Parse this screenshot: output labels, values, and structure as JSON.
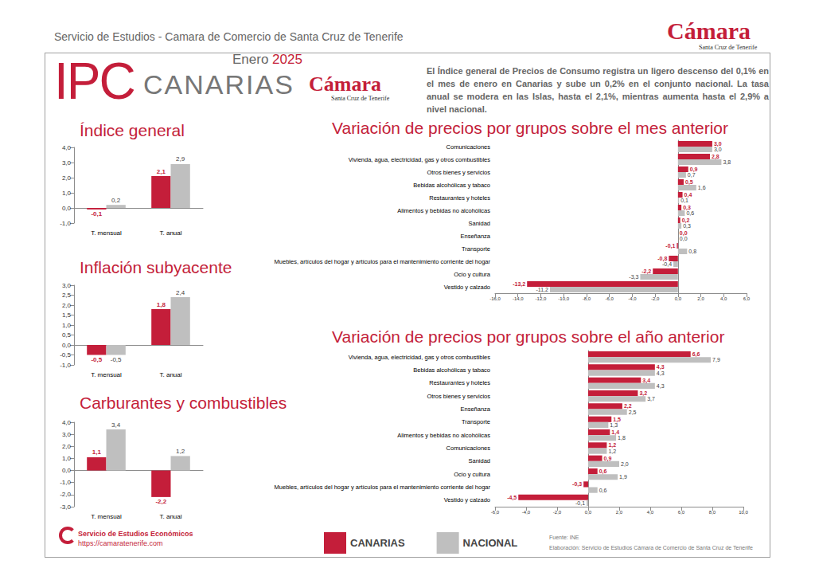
{
  "header": {
    "top_text": "Servicio de Estudios - Camara de Comercio de Santa Cruz de Tenerife",
    "logo_name": "Cámara",
    "logo_sub": "Santa Cruz de Tenerife",
    "title_main": "IPC",
    "title_region": "CANARIAS",
    "period_month": "Enero",
    "period_year": "2025",
    "summary": "El Índice general de Precios de Consumo registra un ligero descenso del 0,1% en el mes de enero en Canarias y sube un 0,2% en el conjunto nacional. La tasa anual se modera en las Islas, hasta el 2,1%, mientras aumenta hasta el 2,9% a nivel nacional."
  },
  "chart_data": [
    {
      "type": "bar",
      "title": "Índice general",
      "categories": [
        "T. mensual",
        "T. anual"
      ],
      "series": [
        {
          "name": "CANARIAS",
          "color": "#c41e3a",
          "values": [
            -0.1,
            2.1
          ],
          "value_labels": [
            "-0,1",
            "2,1"
          ]
        },
        {
          "name": "NACIONAL",
          "color": "#bfbfbf",
          "values": [
            0.2,
            2.9
          ],
          "value_labels": [
            "0,2",
            "2,9"
          ]
        }
      ],
      "ylim": [
        -1,
        4
      ],
      "yticks": [
        {
          "value": -1,
          "label": "-1,0"
        },
        {
          "value": 0,
          "label": "0,0"
        },
        {
          "value": 1,
          "label": "1,0"
        },
        {
          "value": 2,
          "label": "2,0"
        },
        {
          "value": 3,
          "label": "3,0"
        },
        {
          "value": 4,
          "label": "4,0"
        }
      ],
      "grid": false,
      "data_labels": true,
      "legend": "bottom"
    },
    {
      "type": "bar",
      "title": "Inflación subyacente",
      "categories": [
        "T. mensual",
        "T. anual"
      ],
      "series": [
        {
          "name": "CANARIAS",
          "color": "#c41e3a",
          "values": [
            -0.5,
            1.8
          ],
          "value_labels": [
            "-0,5",
            "1,8"
          ]
        },
        {
          "name": "NACIONAL",
          "color": "#bfbfbf",
          "values": [
            -0.5,
            2.4
          ],
          "value_labels": [
            "-0,5",
            "2,4"
          ]
        }
      ],
      "ylim": [
        -1,
        3
      ],
      "yticks": [
        {
          "value": -1,
          "label": "-1,0"
        },
        {
          "value": -0.5,
          "label": "-0,5"
        },
        {
          "value": 0,
          "label": "0,0"
        },
        {
          "value": 0.5,
          "label": "0,5"
        },
        {
          "value": 1,
          "label": "1,0"
        },
        {
          "value": 1.5,
          "label": "1,5"
        },
        {
          "value": 2,
          "label": "2,0"
        },
        {
          "value": 2.5,
          "label": "2,5"
        },
        {
          "value": 3,
          "label": "3,0"
        }
      ],
      "grid": false,
      "data_labels": true,
      "legend": "bottom"
    },
    {
      "type": "bar",
      "title": "Carburantes y combustibles",
      "categories": [
        "T. mensual",
        "T. anual"
      ],
      "series": [
        {
          "name": "CANARIAS",
          "color": "#c41e3a",
          "values": [
            1.1,
            -2.2
          ],
          "value_labels": [
            "1,1",
            "-2,2"
          ]
        },
        {
          "name": "NACIONAL",
          "color": "#bfbfbf",
          "values": [
            3.4,
            1.2
          ],
          "value_labels": [
            "3,4",
            "1,2"
          ]
        }
      ],
      "ylim": [
        -3,
        4
      ],
      "yticks": [
        {
          "value": -3,
          "label": "-3,0"
        },
        {
          "value": -2,
          "label": "-2,0"
        },
        {
          "value": -1,
          "label": "-1,0"
        },
        {
          "value": 0,
          "label": "0,0"
        },
        {
          "value": 1,
          "label": "1,0"
        },
        {
          "value": 2,
          "label": "2,0"
        },
        {
          "value": 3,
          "label": "3,0"
        },
        {
          "value": 4,
          "label": "4,0"
        }
      ],
      "grid": false,
      "data_labels": true,
      "legend": "bottom"
    },
    {
      "type": "bar",
      "title": "Variación de precios por grupos sobre el mes anterior",
      "orientation": "horizontal",
      "categories": [
        "Comunicaciones",
        "Vivienda, agua, electricidad, gas y otros combustibles",
        "Otros bienes y servicios",
        "Bebidas alcohólicas y tabaco",
        "Restaurantes y hoteles",
        "Alimentos y bebidas no alcohólicas",
        "Sanidad",
        "Enseñanza",
        "Transporte",
        "Muebles, artículos del hogar y artículos para el mantenimiento corriente del hogar",
        "Ocio y cultura",
        "Vestido y calzado"
      ],
      "series": [
        {
          "name": "CANARIAS",
          "color": "#c41e3a",
          "values": [
            3.0,
            2.8,
            0.9,
            0.5,
            0.4,
            0.3,
            0.2,
            0.0,
            -0.1,
            -0.8,
            -2.2,
            -13.2
          ],
          "value_labels": [
            "3,0",
            "2,8",
            "0,9",
            "0,5",
            "0,4",
            "0,3",
            "0,2",
            "0,0",
            "-0,1",
            "-0,8",
            "-2,2",
            "-13,2"
          ]
        },
        {
          "name": "NACIONAL",
          "color": "#bfbfbf",
          "values": [
            3.0,
            3.8,
            0.7,
            1.6,
            0.1,
            0.6,
            0.3,
            0.0,
            0.8,
            -0.4,
            -3.3,
            -11.2
          ],
          "value_labels": [
            "3,0",
            "3,8",
            "0,7",
            "1,6",
            "0,1",
            "0,6",
            "0,3",
            "0,0",
            "0,8",
            "-0,4",
            "-3,3",
            "-11,2"
          ]
        }
      ],
      "xlim": [
        -16,
        6
      ],
      "xticks": [
        {
          "value": -16,
          "label": "-16,0"
        },
        {
          "value": -14,
          "label": "-14,0"
        },
        {
          "value": -12,
          "label": "-12,0"
        },
        {
          "value": -10,
          "label": "-10,0"
        },
        {
          "value": -8,
          "label": "-8,0"
        },
        {
          "value": -6,
          "label": "-6,0"
        },
        {
          "value": -4,
          "label": "-4,0"
        },
        {
          "value": -2,
          "label": "-2,0"
        },
        {
          "value": 0,
          "label": "0,0"
        },
        {
          "value": 2,
          "label": "2,0"
        },
        {
          "value": 4,
          "label": "4,0"
        },
        {
          "value": 6,
          "label": "6,0"
        }
      ],
      "grid": false,
      "data_labels": true,
      "legend": "bottom"
    },
    {
      "type": "bar",
      "title": "Variación de precios por grupos sobre el año anterior",
      "orientation": "horizontal",
      "categories": [
        "Vivienda, agua, electricidad, gas y otros combustibles",
        "Bebidas alcohólicas y tabaco",
        "Restaurantes y hoteles",
        "Otros bienes y servicios",
        "Enseñanza",
        "Transporte",
        "Alimentos y bebidas no alcohólicas",
        "Comunicaciones",
        "Sanidad",
        "Ocio y cultura",
        "Muebles, artículos del hogar y artículos para el mantenimiento corriente del hogar",
        "Vestido y calzado"
      ],
      "series": [
        {
          "name": "CANARIAS",
          "color": "#c41e3a",
          "values": [
            6.6,
            4.3,
            3.4,
            3.2,
            2.2,
            1.5,
            1.4,
            1.2,
            0.9,
            0.6,
            -0.3,
            -4.5
          ],
          "value_labels": [
            "6,6",
            "4,3",
            "3,4",
            "3,2",
            "2,2",
            "1,5",
            "1,4",
            "1,2",
            "0,9",
            "0,6",
            "-0,3",
            "-4,5"
          ]
        },
        {
          "name": "NACIONAL",
          "color": "#bfbfbf",
          "values": [
            7.9,
            4.3,
            4.3,
            3.7,
            2.5,
            1.3,
            1.8,
            1.2,
            2.0,
            1.9,
            0.6,
            -0.1
          ],
          "value_labels": [
            "7,9",
            "4,3",
            "4,3",
            "3,7",
            "2,5",
            "1,3",
            "1,8",
            "1,2",
            "2,0",
            "1,9",
            "0,6",
            "-0,1"
          ]
        }
      ],
      "xlim": [
        -6,
        10
      ],
      "xticks": [
        {
          "value": -6,
          "label": "-6,0"
        },
        {
          "value": -4,
          "label": "-4,0"
        },
        {
          "value": -2,
          "label": "-2,0"
        },
        {
          "value": 0,
          "label": "0,0"
        },
        {
          "value": 2,
          "label": "2,0"
        },
        {
          "value": 4,
          "label": "4,0"
        },
        {
          "value": 6,
          "label": "6,0"
        },
        {
          "value": 8,
          "label": "8,0"
        },
        {
          "value": 10,
          "label": "10,0"
        }
      ],
      "grid": false,
      "data_labels": true,
      "legend": "bottom"
    }
  ],
  "footer": {
    "org_name": "Servicio de Estudios Económicos",
    "url": "https://camaratenerife.com",
    "source": "Fuente: INE",
    "credit": "Elaboración: Servicio de Estudios Cámara de Comercio de Santa Cruz de Tenerife"
  }
}
